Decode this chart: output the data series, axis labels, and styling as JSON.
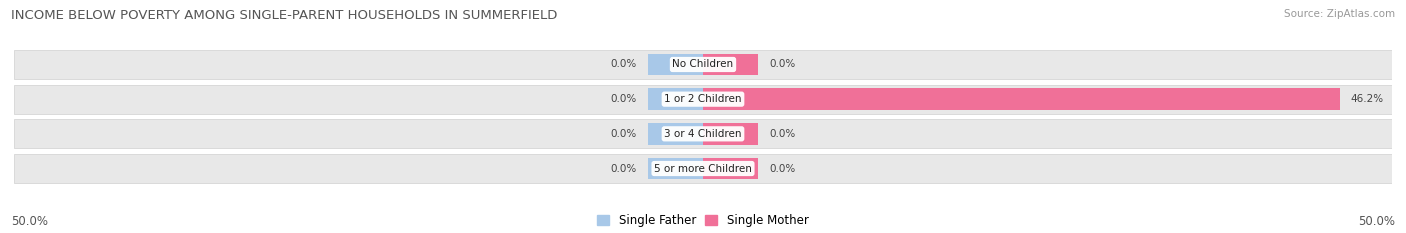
{
  "title": "INCOME BELOW POVERTY AMONG SINGLE-PARENT HOUSEHOLDS IN SUMMERFIELD",
  "source": "Source: ZipAtlas.com",
  "categories": [
    "No Children",
    "1 or 2 Children",
    "3 or 4 Children",
    "5 or more Children"
  ],
  "single_father": [
    0.0,
    0.0,
    0.0,
    0.0
  ],
  "single_mother": [
    0.0,
    46.2,
    0.0,
    0.0
  ],
  "father_color": "#a8c8e8",
  "mother_color": "#f07098",
  "bar_bg_color": "#e8e8e8",
  "bar_bg_edge_color": "#d0d0d0",
  "axis_min": -50.0,
  "axis_max": 50.0,
  "legend_labels": [
    "Single Father",
    "Single Mother"
  ],
  "bottom_left_label": "50.0%",
  "bottom_right_label": "50.0%",
  "title_fontsize": 9.5,
  "source_fontsize": 7.5,
  "label_fontsize": 8.5,
  "bar_label_fontsize": 7.5,
  "category_fontsize": 7.5,
  "stub_size": 4.0
}
